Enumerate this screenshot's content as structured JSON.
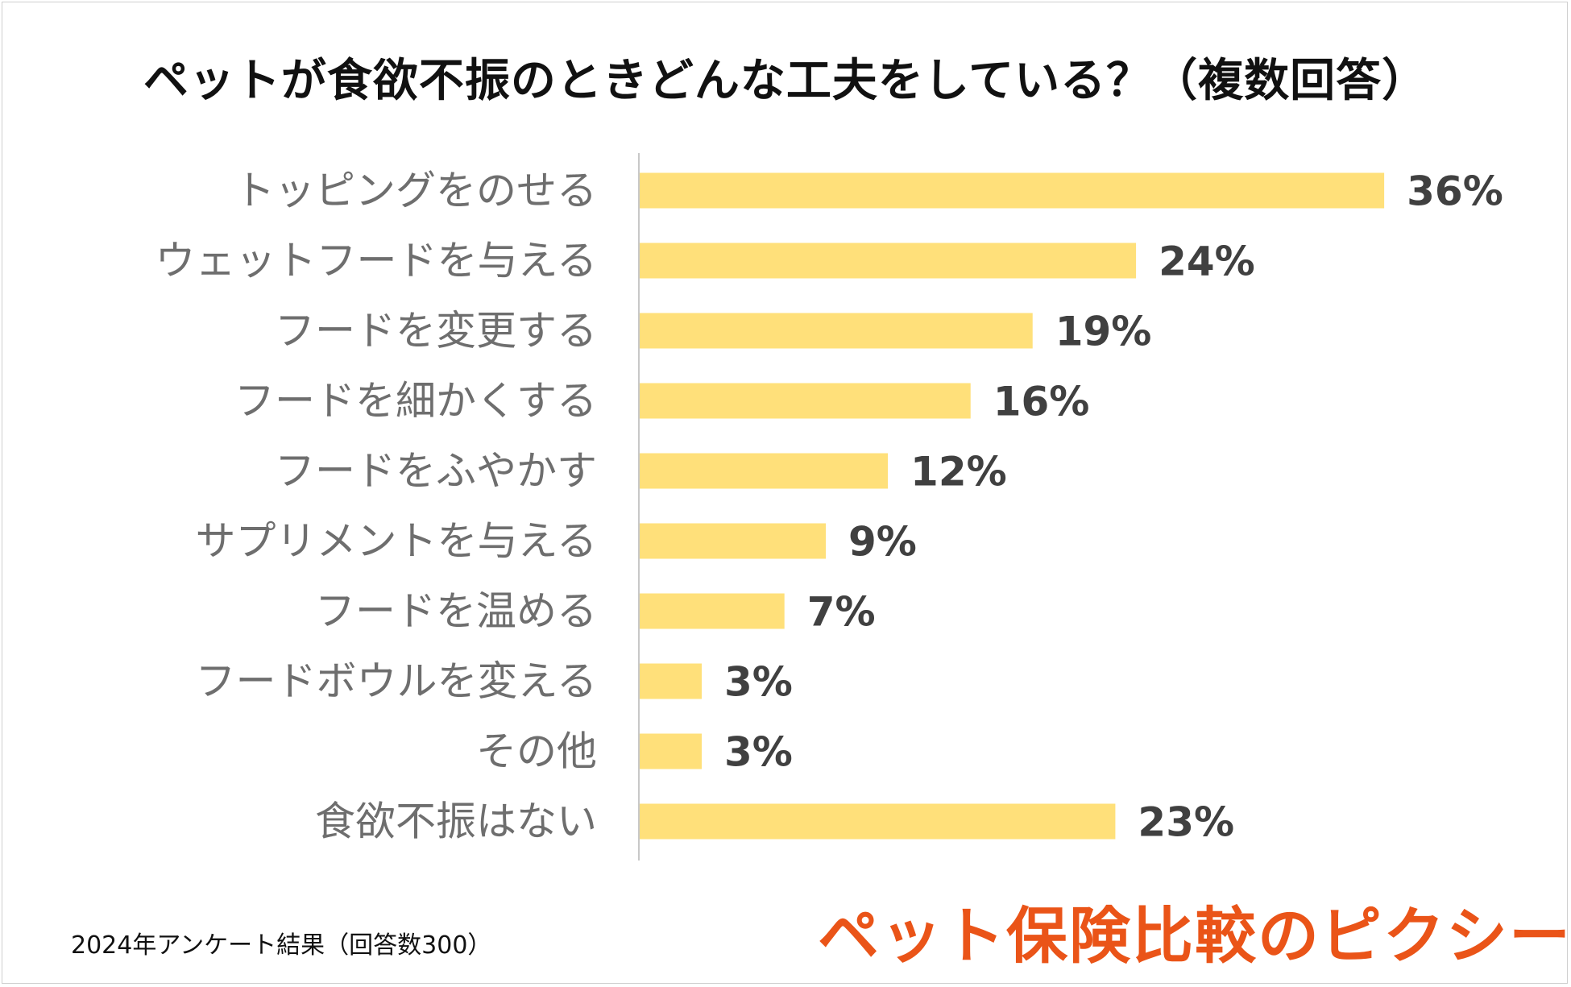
{
  "chart_data": {
    "type": "bar",
    "orientation": "horizontal",
    "title": "ペットが食欲不振のときどんな工夫をしている？（複数回答）",
    "categories": [
      "トッピングをのせる",
      "ウェットフードを与える",
      "フードを変更する",
      "フードを細かくする",
      "フードをふやかす",
      "サプリメントを与える",
      "フードを温める",
      "フードボウルを変える",
      "その他",
      "食欲不振はない"
    ],
    "values": [
      36,
      24,
      19,
      16,
      12,
      9,
      7,
      3,
      3,
      23
    ],
    "value_labels": [
      "36%",
      "24%",
      "19%",
      "16%",
      "12%",
      "9%",
      "7%",
      "3%",
      "3%",
      "23%"
    ],
    "unit": "%",
    "xlim": [
      0,
      40
    ],
    "bar_color": "#FFE07A",
    "grid": false,
    "legend": "none"
  },
  "footnote": "2024年アンケート結果（回答数300）",
  "brand": "ペット保険比較のピクシー",
  "colors": {
    "brand": "#EA5418",
    "title": "#111111",
    "category_text": "#6E6E6E",
    "value_text": "#404040",
    "axis": "#C8C8C8"
  }
}
